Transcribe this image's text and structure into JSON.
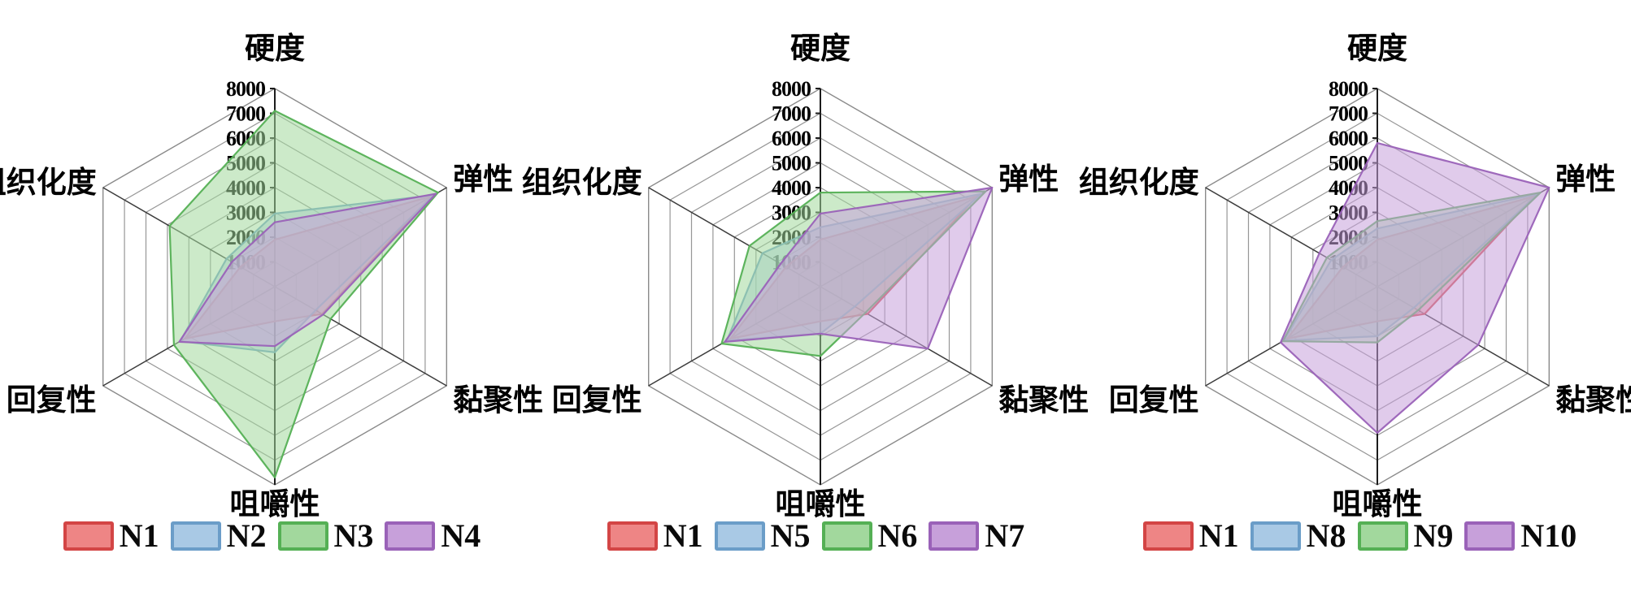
{
  "figure_title": "",
  "palette": {
    "red": {
      "stroke": "#d34545",
      "fill": "#ee8585"
    },
    "blue": {
      "stroke": "#6b9dc8",
      "fill": "#a9c9e5"
    },
    "green": {
      "stroke": "#55b055",
      "fill": "#a2d89d"
    },
    "purple": {
      "stroke": "#9a62b8",
      "fill": "#c7a0da"
    }
  },
  "chart_data": [
    {
      "type": "radar",
      "title": "",
      "categories": [
        "硬度",
        "弹性",
        "黏聚性",
        "咀嚼性",
        "回复性",
        "组织化度"
      ],
      "r_min": 0,
      "r_max": 8000,
      "r_step": 1000,
      "tick_labels": [
        "1000",
        "2000",
        "3000",
        "4000",
        "5000",
        "6000",
        "7000",
        "8000"
      ],
      "grid": true,
      "legend_position": "bottom",
      "series": [
        {
          "name": "N1",
          "color": "red",
          "values": [
            1900,
            7300,
            2200,
            1400,
            4200,
            1600
          ]
        },
        {
          "name": "N2",
          "color": "blue",
          "values": [
            2950,
            7400,
            1900,
            2650,
            4400,
            2250
          ]
        },
        {
          "name": "N3",
          "color": "green",
          "values": [
            7100,
            7600,
            2600,
            7700,
            4700,
            4900
          ]
        },
        {
          "name": "N4",
          "color": "purple",
          "values": [
            2600,
            7500,
            2250,
            2400,
            4450,
            2000
          ]
        }
      ]
    },
    {
      "type": "radar",
      "title": "",
      "categories": [
        "硬度",
        "弹性",
        "黏聚性",
        "咀嚼性",
        "回复性",
        "组织化度"
      ],
      "r_min": 0,
      "r_max": 8000,
      "r_step": 1000,
      "tick_labels": [
        "1000",
        "2000",
        "3000",
        "4000",
        "5000",
        "6000",
        "7000",
        "8000"
      ],
      "grid": true,
      "legend_position": "bottom",
      "series": [
        {
          "name": "N1",
          "color": "red",
          "values": [
            1900,
            7300,
            2200,
            1400,
            4200,
            1600
          ]
        },
        {
          "name": "N5",
          "color": "blue",
          "values": [
            2400,
            7500,
            1600,
            1900,
            4350,
            2700
          ]
        },
        {
          "name": "N6",
          "color": "green",
          "values": [
            3800,
            7700,
            2100,
            2800,
            4600,
            3300
          ]
        },
        {
          "name": "N7",
          "color": "purple",
          "values": [
            2950,
            8000,
            5000,
            1900,
            4450,
            1850
          ]
        }
      ]
    },
    {
      "type": "radar",
      "title": "",
      "categories": [
        "硬度",
        "弹性",
        "黏聚性",
        "咀嚼性",
        "回复性",
        "组织化度"
      ],
      "r_min": 0,
      "r_max": 8000,
      "r_step": 1000,
      "tick_labels": [
        "1000",
        "2000",
        "3000",
        "4000",
        "5000",
        "6000",
        "7000",
        "8000"
      ],
      "grid": true,
      "legend_position": "bottom",
      "series": [
        {
          "name": "N1",
          "color": "red",
          "values": [
            1900,
            7300,
            2200,
            1400,
            4200,
            1600
          ]
        },
        {
          "name": "N8",
          "color": "blue",
          "values": [
            2350,
            7500,
            1700,
            2000,
            4350,
            2150
          ]
        },
        {
          "name": "N9",
          "color": "green",
          "values": [
            2650,
            7600,
            1900,
            2250,
            4400,
            2350
          ]
        },
        {
          "name": "N10",
          "color": "purple",
          "values": [
            5800,
            8000,
            4700,
            5900,
            4500,
            2700
          ]
        }
      ]
    }
  ]
}
